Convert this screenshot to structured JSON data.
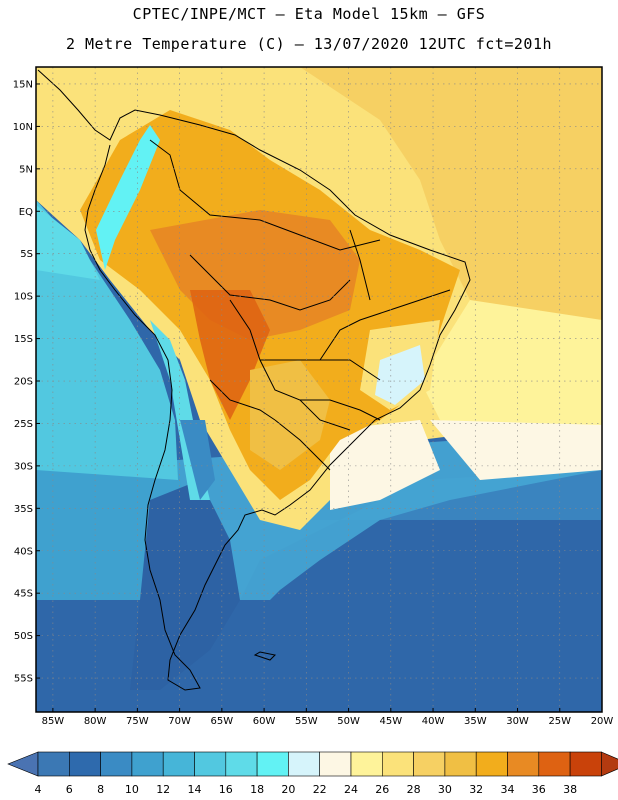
{
  "header": {
    "line1": "CPTEC/INPE/MCT –  Eta Model 15km – GFS",
    "line2": "2 Metre Temperature (C) – 13/07/2020 12UTC fct=201h"
  },
  "map": {
    "lat_labels": [
      "15N",
      "10N",
      "5N",
      "EQ",
      "5S",
      "10S",
      "15S",
      "20S",
      "25S",
      "30S",
      "35S",
      "40S",
      "45S",
      "50S",
      "55S"
    ],
    "lon_labels": [
      "85W",
      "80W",
      "75W",
      "70W",
      "65W",
      "60W",
      "55W",
      "50W",
      "45W",
      "40W",
      "35W",
      "30W",
      "25W",
      "20W"
    ],
    "lat_values": [
      15,
      10,
      5,
      0,
      -5,
      -10,
      -15,
      -20,
      -25,
      -30,
      -35,
      -40,
      -45,
      -50,
      -55
    ],
    "lon_values": [
      -85,
      -80,
      -75,
      -70,
      -65,
      -60,
      -55,
      -50,
      -45,
      -40,
      -35,
      -30,
      -25,
      -20
    ]
  },
  "colorbar": {
    "labels": [
      "4",
      "6",
      "8",
      "10",
      "12",
      "14",
      "16",
      "18",
      "20",
      "22",
      "24",
      "26",
      "28",
      "30",
      "32",
      "34",
      "36",
      "38"
    ],
    "colors": [
      "#3b78b4",
      "#2e6aad",
      "#3a8bc4",
      "#3fa1cf",
      "#46b5d8",
      "#52c8e0",
      "#5fdbe8",
      "#62f2f4",
      "#d6f4fb",
      "#fdf7e4",
      "#fef39a",
      "#fbe27a",
      "#f6d063",
      "#f0bf44",
      "#f2ad1c",
      "#e88a23",
      "#de6212",
      "#c9420a",
      "#b33a10"
    ],
    "under_color": "#4a73b2",
    "over_color": "#b33a10"
  }
}
